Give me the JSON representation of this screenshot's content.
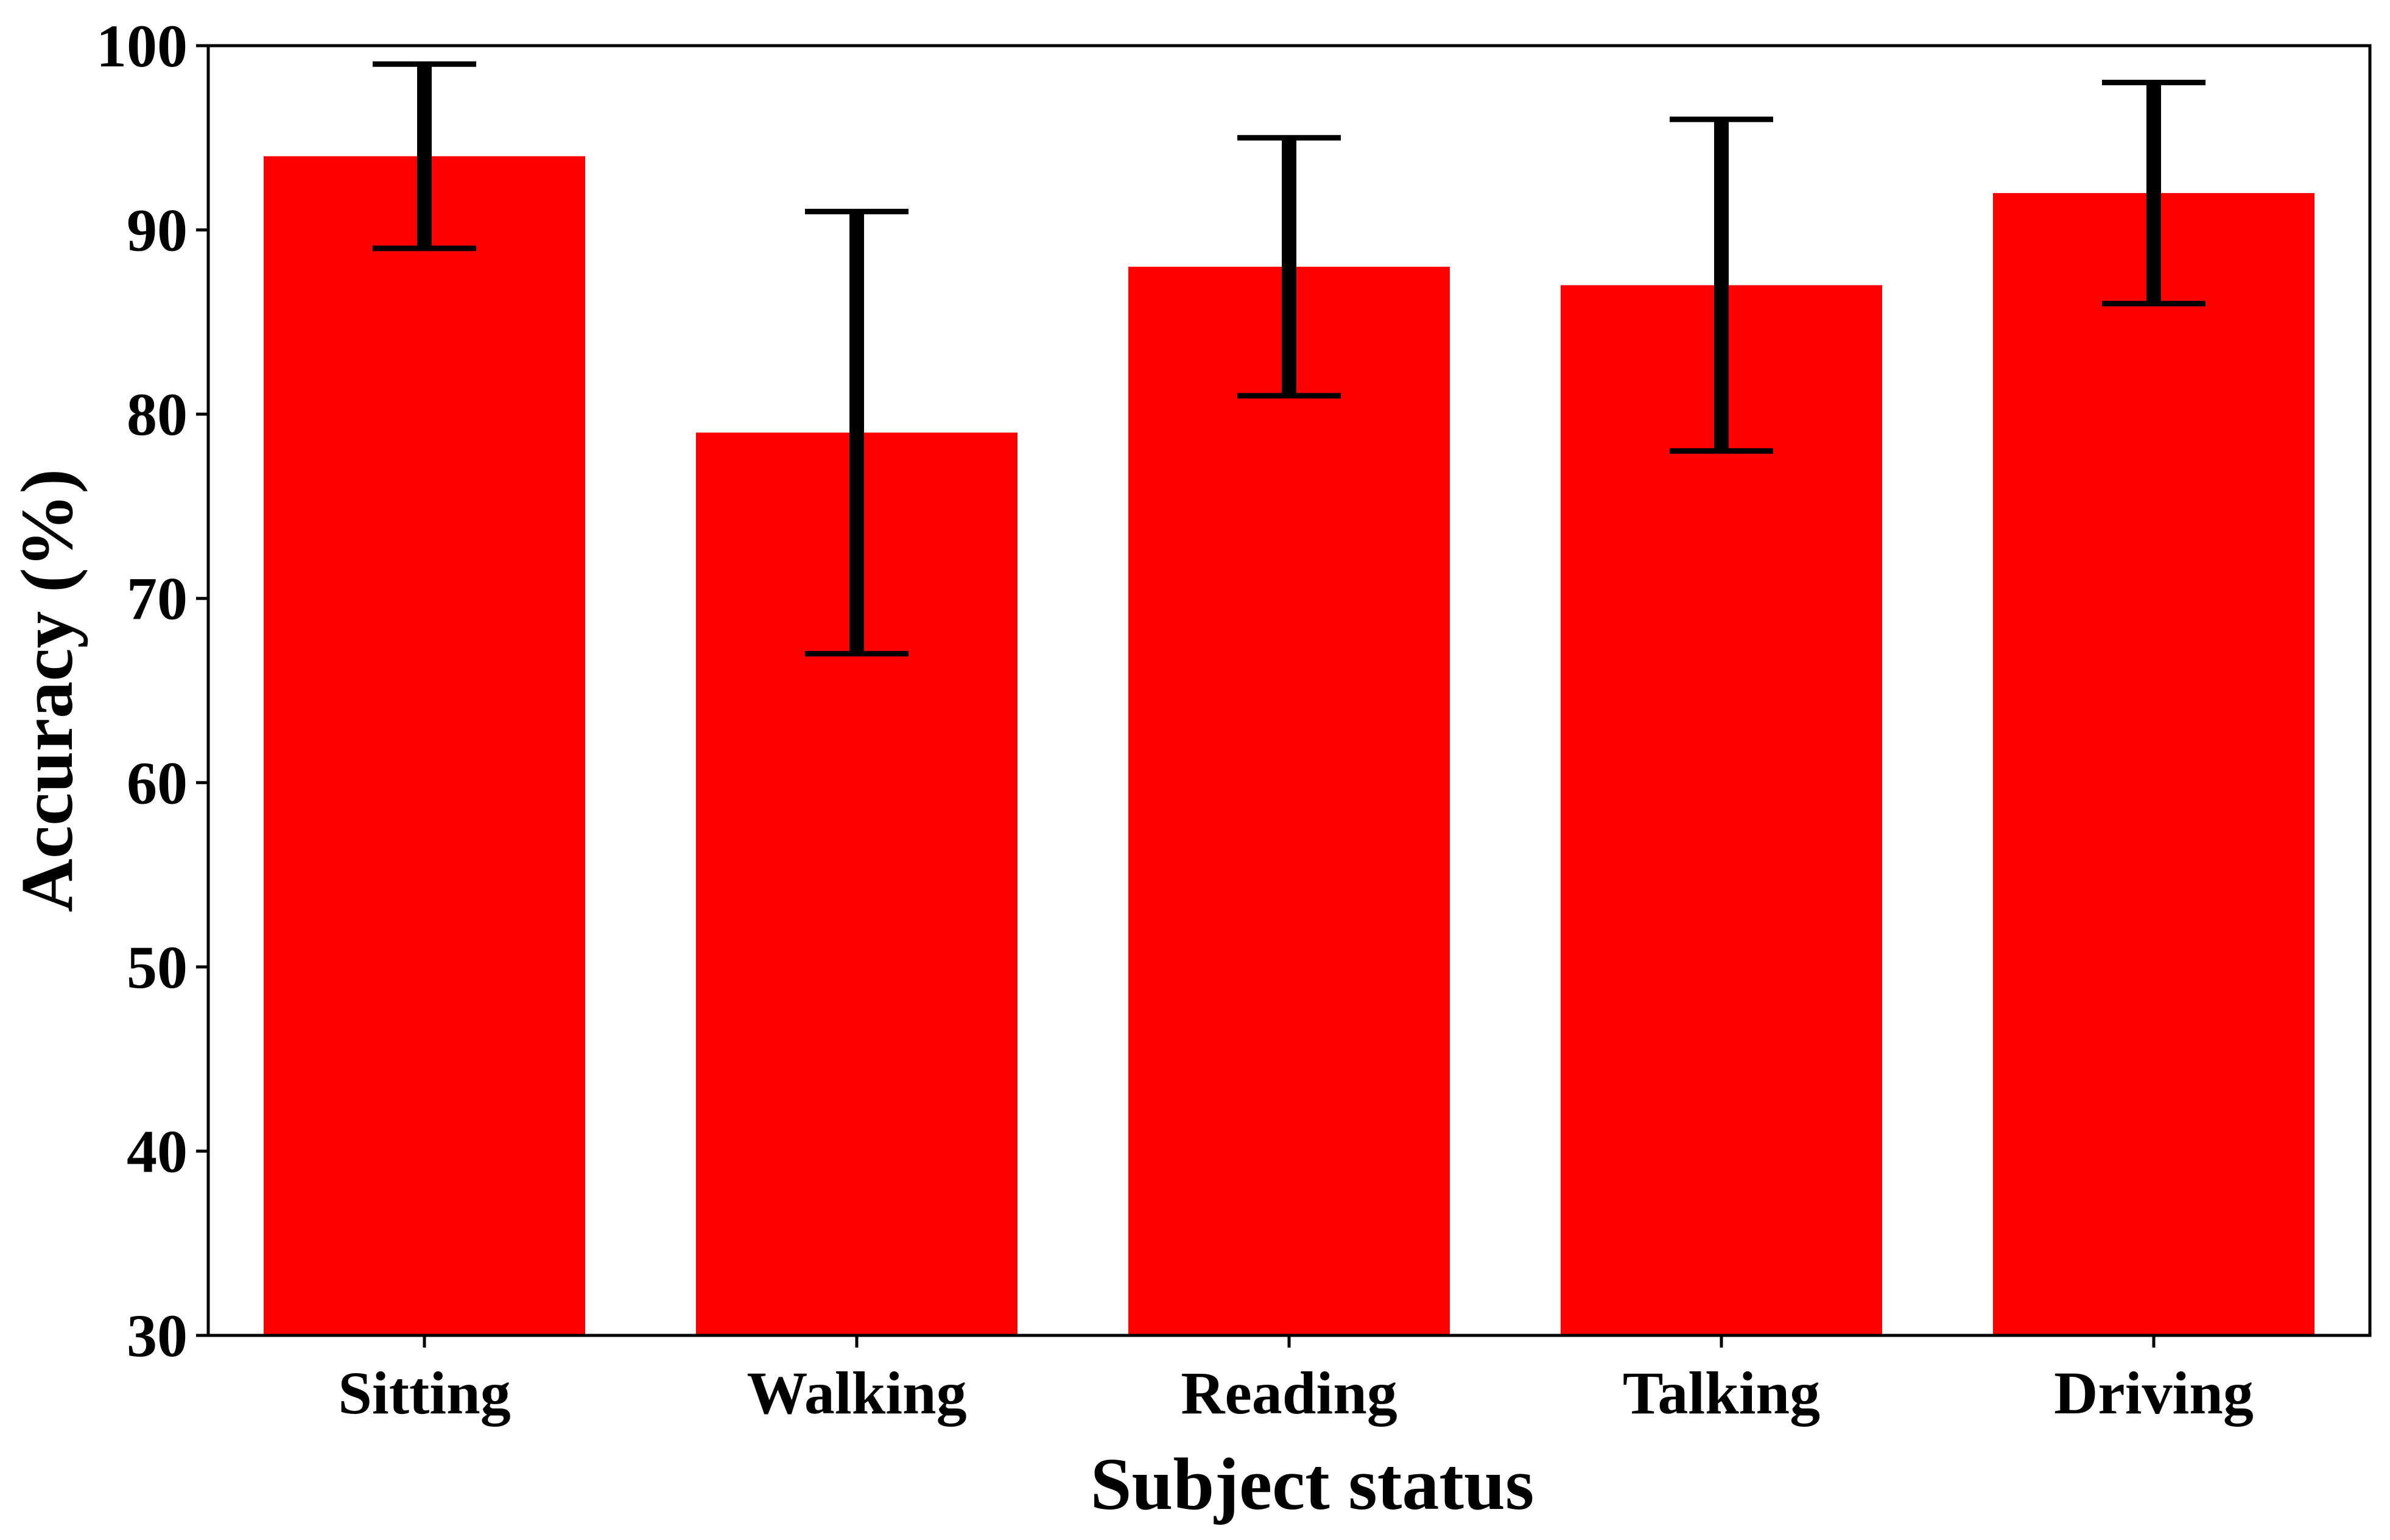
{
  "chart_data": {
    "type": "bar",
    "title": "",
    "xlabel": "Subject status",
    "ylabel": "Accuracy (%)",
    "categories": [
      "Sitting",
      "Walking",
      "Reading",
      "Talking",
      "Driving"
    ],
    "values": [
      94,
      79,
      88,
      87,
      92
    ],
    "error_low": [
      89,
      67,
      81,
      78,
      86
    ],
    "error_high": [
      99,
      91,
      95,
      96,
      98
    ],
    "ylim": [
      30,
      100
    ],
    "yticks": [
      "30",
      "40",
      "50",
      "60",
      "70",
      "80",
      "90",
      "100"
    ],
    "grid": false,
    "bar_color": "#ff0000",
    "error_color": "#000000"
  }
}
